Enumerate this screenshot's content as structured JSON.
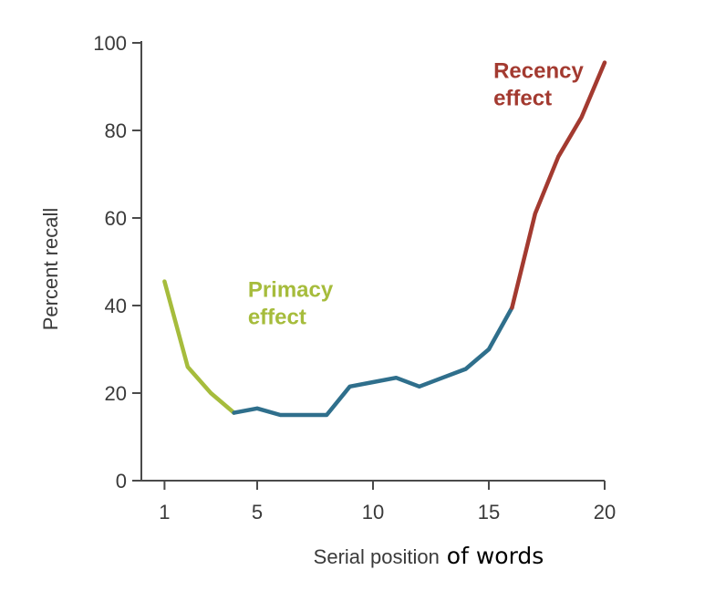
{
  "chart_data": {
    "type": "line",
    "xlabel": "Serial position",
    "xlabel_suffix": " of words",
    "ylabel": "Percent recall",
    "xlim": [
      0,
      20
    ],
    "ylim": [
      0,
      100
    ],
    "x_ticks": [
      1,
      5,
      10,
      15,
      20
    ],
    "y_ticks": [
      0,
      20,
      40,
      60,
      80,
      100
    ],
    "grid": false,
    "colors": {
      "primacy": "#a6bc3c",
      "middle": "#2f6f8c",
      "recency": "#a33a30",
      "axis": "#4a4a4a"
    },
    "segments": [
      {
        "part": "primacy",
        "x": [
          1,
          2,
          3,
          4
        ],
        "y": [
          45.5,
          26,
          20,
          15.5
        ]
      },
      {
        "part": "middle",
        "x": [
          4,
          5,
          6,
          7,
          8,
          9,
          10,
          11,
          12,
          13,
          14,
          15,
          16
        ],
        "y": [
          15.5,
          16.5,
          15,
          15,
          15,
          21.5,
          22.5,
          23.5,
          21.5,
          23.5,
          25.5,
          30,
          39.5
        ]
      },
      {
        "part": "recency",
        "x": [
          16,
          17,
          18,
          19,
          20
        ],
        "y": [
          39.5,
          61,
          74,
          83,
          95.5
        ]
      }
    ],
    "annotations": [
      {
        "part": "primacy",
        "lines": [
          "Primacy",
          "effect"
        ],
        "x": 4.6,
        "y": 42
      },
      {
        "part": "recency",
        "lines": [
          "Recency",
          "effect"
        ],
        "x": 15.2,
        "y": 92
      }
    ]
  }
}
